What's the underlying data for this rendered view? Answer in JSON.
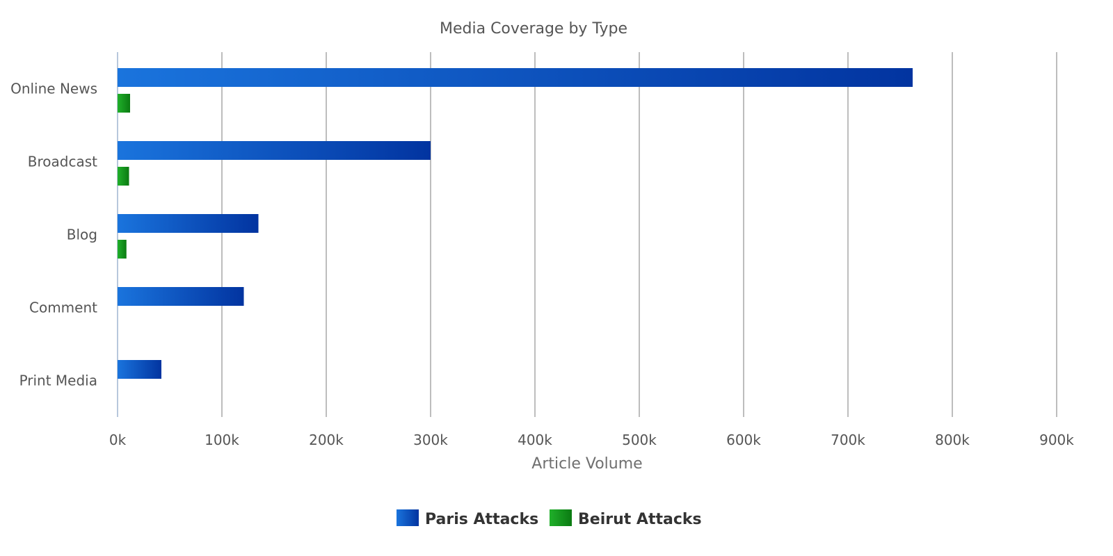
{
  "chart_data": {
    "type": "bar",
    "orientation": "horizontal",
    "title": "Media Coverage by Type",
    "xlabel": "Article Volume",
    "ylabel": "",
    "categories": [
      "Online News",
      "Broadcast",
      "Blog",
      "Comment",
      "Print Media"
    ],
    "xlim": [
      0,
      900000
    ],
    "ticks": [
      0,
      100000,
      200000,
      300000,
      400000,
      500000,
      600000,
      700000,
      800000,
      900000
    ],
    "tick_labels": [
      "0k",
      "100k",
      "200k",
      "300k",
      "400k",
      "500k",
      "600k",
      "700k",
      "800k",
      "900k"
    ],
    "grid": true,
    "legend_position": "bottom-center",
    "series": [
      {
        "name": "Paris Attacks",
        "values": [
          762000,
          300000,
          135000,
          121000,
          42000
        ],
        "color": "#0a3fb0",
        "gradient": [
          "#1a74dd",
          "#0234a0"
        ]
      },
      {
        "name": "Beirut Attacks",
        "values": [
          12000,
          11000,
          8500,
          0,
          0
        ],
        "color": "#139e1b",
        "gradient": [
          "#20b02a",
          "#0b7a12"
        ]
      }
    ]
  }
}
